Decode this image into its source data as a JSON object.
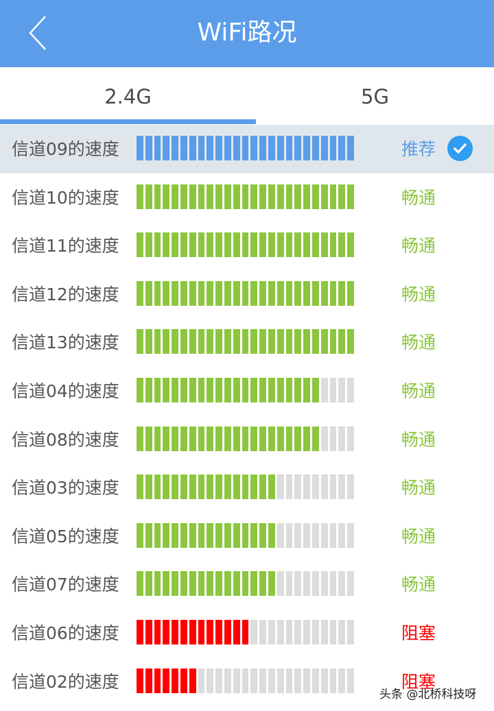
{
  "header": {
    "title": "WiFi路况",
    "back_icon": "chevron-left-icon"
  },
  "tabs": [
    {
      "label": "2.4G",
      "active": true
    },
    {
      "label": "5G",
      "active": false
    }
  ],
  "colors": {
    "accent": "#5b9de8",
    "recommended": "#5b9de8",
    "clear": "#8cc63f",
    "blocked": "#ff0000",
    "empty_segment": "#dcdcdc",
    "check_badge": "#2f9df0"
  },
  "total_segments": 25,
  "channels": [
    {
      "label": "信道09的速度",
      "filled": 25,
      "status": "推荐",
      "level": "recommended",
      "recommended": true
    },
    {
      "label": "信道10的速度",
      "filled": 25,
      "status": "畅通",
      "level": "clear"
    },
    {
      "label": "信道11的速度",
      "filled": 25,
      "status": "畅通",
      "level": "clear"
    },
    {
      "label": "信道12的速度",
      "filled": 25,
      "status": "畅通",
      "level": "clear"
    },
    {
      "label": "信道13的速度",
      "filled": 25,
      "status": "畅通",
      "level": "clear"
    },
    {
      "label": "信道04的速度",
      "filled": 21,
      "status": "畅通",
      "level": "clear"
    },
    {
      "label": "信道08的速度",
      "filled": 21,
      "status": "畅通",
      "level": "clear"
    },
    {
      "label": "信道03的速度",
      "filled": 16,
      "status": "畅通",
      "level": "clear"
    },
    {
      "label": "信道05的速度",
      "filled": 16,
      "status": "畅通",
      "level": "clear"
    },
    {
      "label": "信道07的速度",
      "filled": 16,
      "status": "畅通",
      "level": "clear"
    },
    {
      "label": "信道06的速度",
      "filled": 13,
      "status": "阻塞",
      "level": "blocked"
    },
    {
      "label": "信道02的速度",
      "filled": 7,
      "status": "阻塞",
      "level": "blocked"
    }
  ],
  "watermark": "头条 @北桥科技呀"
}
